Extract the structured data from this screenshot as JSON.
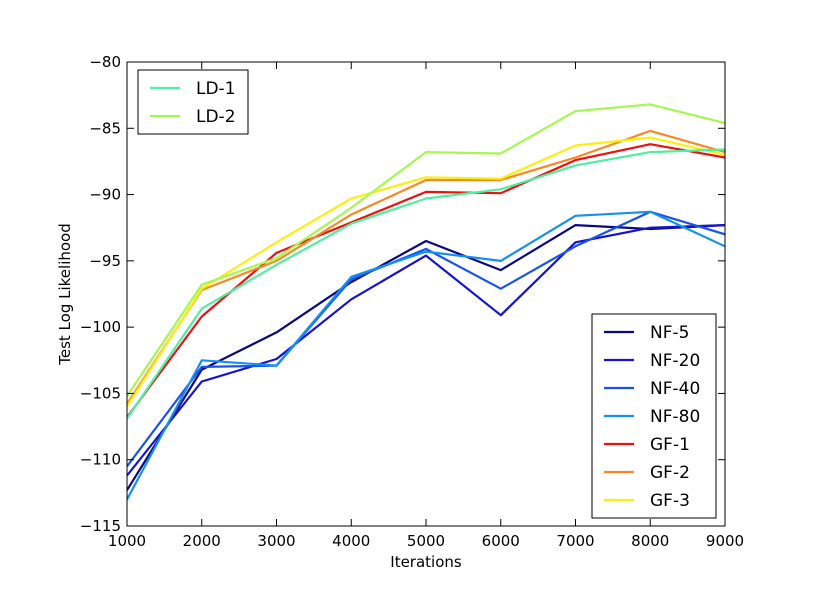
{
  "chart_data": {
    "type": "line",
    "title": "",
    "xlabel": "Iterations",
    "ylabel": "Test Log Likelihood",
    "xlim": [
      1000,
      9000
    ],
    "ylim": [
      -115,
      -80
    ],
    "grid": false,
    "x": [
      1000,
      2000,
      3000,
      4000,
      5000,
      6000,
      7000,
      8000,
      9000
    ],
    "xticks": [
      1000,
      2000,
      3000,
      4000,
      5000,
      6000,
      7000,
      8000,
      9000
    ],
    "yticks": [
      -115,
      -110,
      -105,
      -100,
      -95,
      -90,
      -85,
      -80
    ],
    "xtick_labels": [
      "1000",
      "2000",
      "3000",
      "4000",
      "5000",
      "6000",
      "7000",
      "8000",
      "9000"
    ],
    "ytick_labels": [
      "−115",
      "−110",
      "−105",
      "−100",
      "−95",
      "−90",
      "−85",
      "−80"
    ],
    "legends": [
      {
        "placement": "top-left",
        "series": [
          7,
          8
        ]
      },
      {
        "placement": "bottom-right",
        "series": [
          0,
          1,
          2,
          3,
          4,
          5,
          6
        ]
      }
    ],
    "series": [
      {
        "name": "NF-5",
        "color": "#0a0a80",
        "values": [
          -112.3,
          -103.2,
          -100.4,
          -96.6,
          -93.5,
          -95.7,
          -92.3,
          -92.6,
          -92.3
        ]
      },
      {
        "name": "NF-20",
        "color": "#1414d0",
        "values": [
          -111.2,
          -104.1,
          -102.4,
          -97.9,
          -94.6,
          -99.1,
          -93.6,
          -92.5,
          -92.3
        ]
      },
      {
        "name": "NF-40",
        "color": "#1a52ee",
        "values": [
          -110.5,
          -103.0,
          -102.9,
          -96.4,
          -94.1,
          -97.1,
          -93.9,
          -91.3,
          -93.0
        ]
      },
      {
        "name": "NF-80",
        "color": "#1490ee",
        "values": [
          -113.0,
          -102.5,
          -102.9,
          -96.2,
          -94.3,
          -95.0,
          -91.6,
          -91.3,
          -93.9
        ]
      },
      {
        "name": "GF-1",
        "color": "#ee1010",
        "values": [
          -106.8,
          -99.2,
          -94.4,
          -92.1,
          -89.8,
          -89.9,
          -87.4,
          -86.2,
          -87.2
        ]
      },
      {
        "name": "GF-2",
        "color": "#f88820",
        "values": [
          -105.8,
          -97.2,
          -95.0,
          -91.5,
          -88.9,
          -88.9,
          -87.2,
          -85.2,
          -86.8
        ]
      },
      {
        "name": "GF-3",
        "color": "#f8f010",
        "values": [
          -106.0,
          -97.1,
          -93.6,
          -90.3,
          -88.7,
          -88.8,
          -86.3,
          -85.7,
          -87.0
        ]
      },
      {
        "name": "LD-1",
        "color": "#4ef0a0",
        "values": [
          -106.9,
          -98.6,
          -95.3,
          -92.2,
          -90.3,
          -89.6,
          -87.8,
          -86.8,
          -86.6
        ]
      },
      {
        "name": "LD-2",
        "color": "#a4f850",
        "values": [
          -105.2,
          -96.8,
          -94.8,
          -91.0,
          -86.8,
          -86.9,
          -83.7,
          -83.2,
          -84.6
        ]
      }
    ]
  }
}
